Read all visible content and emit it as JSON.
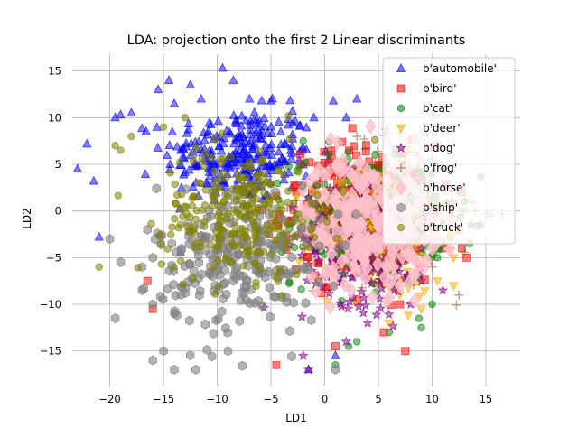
{
  "chart_data": {
    "type": "scatter",
    "title": "LDA: projection onto the first 2 Linear discriminants",
    "xlabel": "LD1",
    "ylabel": "LD2",
    "xlim": [
      -23.5,
      18.2
    ],
    "ylim": [
      -18.8,
      16.8
    ],
    "xticks": [
      -20,
      -15,
      -10,
      -5,
      0,
      5,
      10,
      15
    ],
    "yticks": [
      -15,
      -10,
      -5,
      0,
      5,
      10,
      15
    ],
    "xtick_labels": [
      "−20",
      "−15",
      "−10",
      "−5",
      "0",
      "5",
      "10",
      "15"
    ],
    "ytick_labels": [
      "−15",
      "−10",
      "−5",
      "0",
      "5",
      "10",
      "15"
    ],
    "grid": true,
    "legend_position": "upper-right",
    "series": [
      {
        "name": "b'automobile'",
        "color": "#0000ff",
        "marker": "triangle-up",
        "alpha": 0.5,
        "center": [
          -8,
          6
        ],
        "spread": [
          3.5,
          2.5
        ],
        "outliers": [
          [
            -23,
            4.5
          ],
          [
            -21.5,
            3.2
          ],
          [
            -21,
            -2.8
          ],
          [
            -19.5,
            10
          ],
          [
            -19,
            10.3
          ],
          [
            -18,
            10.5
          ],
          [
            -15.5,
            13
          ],
          [
            -14.5,
            14
          ],
          [
            -14,
            11.5
          ],
          [
            -12.5,
            13.5
          ],
          [
            -11.5,
            12
          ],
          [
            -9.5,
            15.3
          ],
          [
            -8.5,
            14
          ],
          [
            -7,
            12
          ],
          [
            -5,
            11.8
          ],
          [
            -3,
            10.7
          ],
          [
            -1,
            10
          ],
          [
            0.8,
            11.8
          ],
          [
            2,
            10
          ],
          [
            3,
            12
          ],
          [
            -1.5,
            -17
          ],
          [
            1,
            -15.5
          ]
        ]
      },
      {
        "name": "b'bird'",
        "color": "#ff0000",
        "marker": "square",
        "alpha": 0.5,
        "center": [
          3,
          0
        ],
        "spread": [
          3.5,
          3.5
        ],
        "outliers": [
          [
            -16.5,
            -7.5
          ],
          [
            -16,
            -10.5
          ],
          [
            -4.5,
            -16.5
          ],
          [
            1,
            -14.5
          ],
          [
            5.5,
            -13
          ],
          [
            7,
            -10
          ],
          [
            7.5,
            -15
          ],
          [
            11,
            -4
          ],
          [
            12.5,
            -2
          ],
          [
            12.8,
            2
          ],
          [
            13.2,
            -5
          ]
        ]
      },
      {
        "name": "b'cat'",
        "color": "#008000",
        "marker": "circle",
        "alpha": 0.5,
        "center": [
          4,
          -1
        ],
        "spread": [
          3.5,
          3.5
        ],
        "outliers": [
          [
            -2,
            7.5
          ],
          [
            3,
            -14
          ],
          [
            6,
            -13
          ],
          [
            9,
            -12.5
          ],
          [
            10,
            -10
          ],
          [
            10.5,
            -5
          ],
          [
            11,
            -1.5
          ],
          [
            13,
            1
          ],
          [
            13.5,
            -3.5
          ],
          [
            10,
            4
          ],
          [
            1,
            -16.5
          ]
        ]
      },
      {
        "name": "b'deer'",
        "color": "#ffa500",
        "marker": "triangle-down",
        "alpha": 0.5,
        "center": [
          5,
          -2
        ],
        "spread": [
          3,
          3.5
        ],
        "outliers": [
          [
            7,
            -9
          ],
          [
            10.5,
            -7.5
          ],
          [
            12,
            -5
          ],
          [
            13,
            0
          ],
          [
            6,
            -12
          ],
          [
            12,
            -8
          ],
          [
            9,
            -10.5
          ]
        ]
      },
      {
        "name": "b'dog'",
        "color": "#800080",
        "marker": "star",
        "alpha": 0.5,
        "center": [
          4,
          -3
        ],
        "spread": [
          3,
          3.5
        ],
        "outliers": [
          [
            -2,
            -15.5
          ],
          [
            -1.5,
            -17
          ],
          [
            2,
            -14
          ],
          [
            4,
            -12
          ],
          [
            8,
            -10
          ],
          [
            9,
            -7.5
          ],
          [
            11,
            -8.5
          ]
        ]
      },
      {
        "name": "b'frog'",
        "color": "#8b4513",
        "marker": "plus",
        "alpha": 0.5,
        "center": [
          5,
          0
        ],
        "spread": [
          3.5,
          3.5
        ],
        "outliers": [
          [
            12,
            1
          ],
          [
            14,
            0
          ],
          [
            15.5,
            -0.5
          ],
          [
            16.5,
            -0.3
          ],
          [
            11,
            -1
          ],
          [
            10,
            -6
          ],
          [
            12.5,
            -9
          ],
          [
            3,
            8
          ],
          [
            6,
            5
          ]
        ]
      },
      {
        "name": "b'horse'",
        "color": "#ffc0cb",
        "marker": "diamond",
        "alpha": 0.8,
        "center": [
          4,
          -1
        ],
        "spread": [
          3,
          3.5
        ],
        "outliers": [
          [
            9,
            2
          ],
          [
            10,
            -4
          ],
          [
            7,
            -8
          ]
        ]
      },
      {
        "name": "b'ship'",
        "color": "#808080",
        "marker": "hexagon",
        "alpha": 0.6,
        "center": [
          -8,
          -5
        ],
        "spread": [
          3.8,
          4
        ],
        "outliers": [
          [
            -19.5,
            -11.5
          ],
          [
            -17,
            -8.5
          ],
          [
            -16,
            -10
          ],
          [
            -16.5,
            -2
          ],
          [
            -16,
            -5
          ],
          [
            -17,
            -6
          ],
          [
            -16,
            -16
          ],
          [
            -15,
            -15
          ],
          [
            -12,
            -17
          ],
          [
            -9,
            -15
          ],
          [
            -14,
            -17
          ],
          [
            1,
            -17
          ],
          [
            -20,
            -3
          ],
          [
            -19,
            -5.5
          ]
        ]
      },
      {
        "name": "b'truck'",
        "color": "#808000",
        "marker": "circle",
        "alpha": 0.55,
        "center": [
          -8,
          0
        ],
        "spread": [
          3.5,
          3.5
        ],
        "outliers": [
          [
            -21,
            -6
          ],
          [
            -19.5,
            7
          ],
          [
            -18,
            8
          ],
          [
            -19,
            6.5
          ],
          [
            -15,
            9
          ],
          [
            -13,
            10
          ]
        ]
      }
    ]
  }
}
